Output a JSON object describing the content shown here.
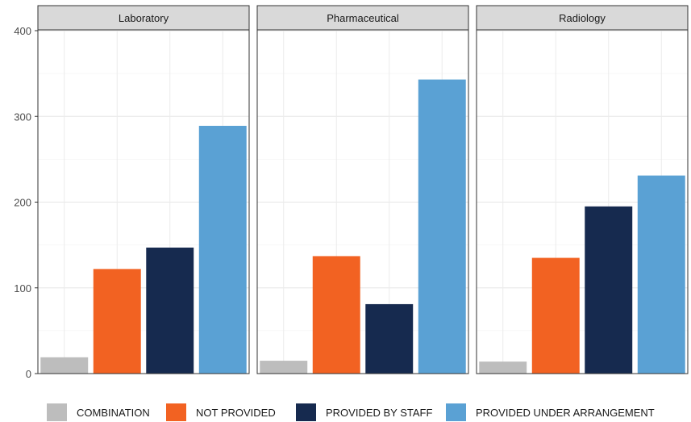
{
  "chart_data": {
    "type": "bar",
    "facets": [
      "Laboratory",
      "Pharmaceutical",
      "Radiology"
    ],
    "categories": [
      "COMBINATION",
      "NOT PROVIDED",
      "PROVIDED BY STAFF",
      "PROVIDED UNDER ARRANGEMENT"
    ],
    "series": [
      {
        "facet": "Laboratory",
        "values": [
          19,
          122,
          147,
          289
        ]
      },
      {
        "facet": "Pharmaceutical",
        "values": [
          15,
          137,
          81,
          343
        ]
      },
      {
        "facet": "Radiology",
        "values": [
          14,
          135,
          195,
          231
        ]
      }
    ],
    "colors": [
      "#bdbdbd",
      "#f26222",
      "#162a4f",
      "#5aa1d4"
    ],
    "ylim": [
      0,
      400
    ],
    "yticks": [
      0,
      100,
      200,
      300,
      400
    ],
    "title": "",
    "xlabel": "",
    "ylabel": "",
    "grid": true,
    "legend_position": "bottom",
    "legend": [
      "COMBINATION",
      "NOT PROVIDED",
      "PROVIDED BY STAFF",
      "PROVIDED UNDER ARRANGEMENT"
    ]
  }
}
